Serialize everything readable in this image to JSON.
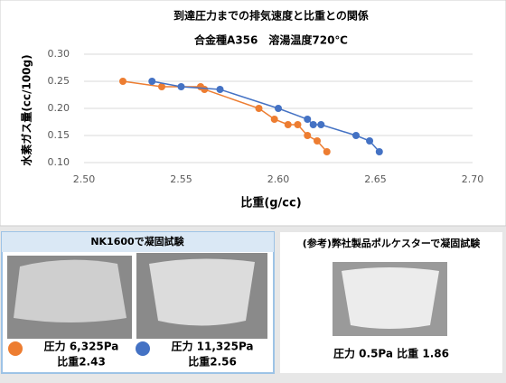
{
  "chart_data": {
    "type": "scatter",
    "title": "到達圧力までの排気速度と比重との関係",
    "subtitle": "合金種A356　溶湯温度720℃",
    "x_label": "比重(g/cc)",
    "y_label": "水素ガス量(cc/100g)",
    "xlim": [
      2.5,
      2.7
    ],
    "xticks": [
      {
        "value": 2.5,
        "label": "2.50"
      },
      {
        "value": 2.55,
        "label": "2.55"
      },
      {
        "value": 2.6,
        "label": "2.60"
      },
      {
        "value": 2.65,
        "label": "2.65"
      },
      {
        "value": 2.7,
        "label": "2.70"
      }
    ],
    "ylim": [
      0.1,
      0.3
    ],
    "yticks": [
      {
        "value": 0.1,
        "label": "0.10"
      },
      {
        "value": 0.15,
        "label": "0.15"
      },
      {
        "value": 0.2,
        "label": "0.20"
      },
      {
        "value": 0.25,
        "label": "0.25"
      },
      {
        "value": 0.3,
        "label": "0.30"
      }
    ],
    "grid": true,
    "series": [
      {
        "color": "#ed7d31",
        "x": [
          2.52,
          2.54,
          2.56,
          2.562,
          2.59,
          2.598,
          2.605,
          2.61,
          2.615,
          2.62,
          2.625
        ],
        "values": [
          0.25,
          0.24,
          0.24,
          0.235,
          0.2,
          0.18,
          0.17,
          0.17,
          0.15,
          0.14,
          0.12
        ]
      },
      {
        "color": "#4472c4",
        "x": [
          2.535,
          2.55,
          2.57,
          2.6,
          2.615,
          2.618,
          2.622,
          2.64,
          2.647,
          2.652
        ],
        "values": [
          0.25,
          0.24,
          0.235,
          0.2,
          0.18,
          0.17,
          0.17,
          0.15,
          0.14,
          0.12
        ]
      }
    ]
  },
  "panels": [
    {
      "title": "NK1600で凝固試験",
      "captions": [
        [
          "圧力 6,325Pa",
          "比重2.43"
        ],
        [
          "圧力 11,325Pa",
          "比重2.56"
        ]
      ]
    },
    {
      "title": "(参考)弊社製品ポルケスターで凝固試験",
      "captions": [
        [
          "圧力 0.5Pa 比重 1.86"
        ]
      ]
    }
  ]
}
